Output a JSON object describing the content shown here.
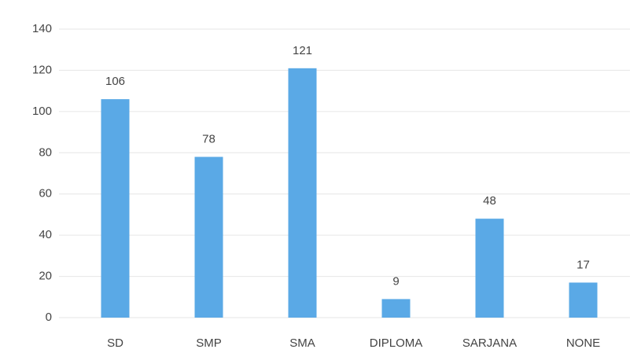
{
  "chart_data": {
    "type": "bar",
    "categories": [
      "SD",
      "SMP",
      "SMA",
      "DIPLOMA",
      "SARJANA",
      "NONE"
    ],
    "values": [
      106,
      78,
      121,
      9,
      48,
      17
    ],
    "color": "#5aa9e6",
    "ylim": [
      0,
      140
    ],
    "yticks": [
      0,
      20,
      40,
      60,
      80,
      100,
      120,
      140
    ],
    "grid": true
  }
}
